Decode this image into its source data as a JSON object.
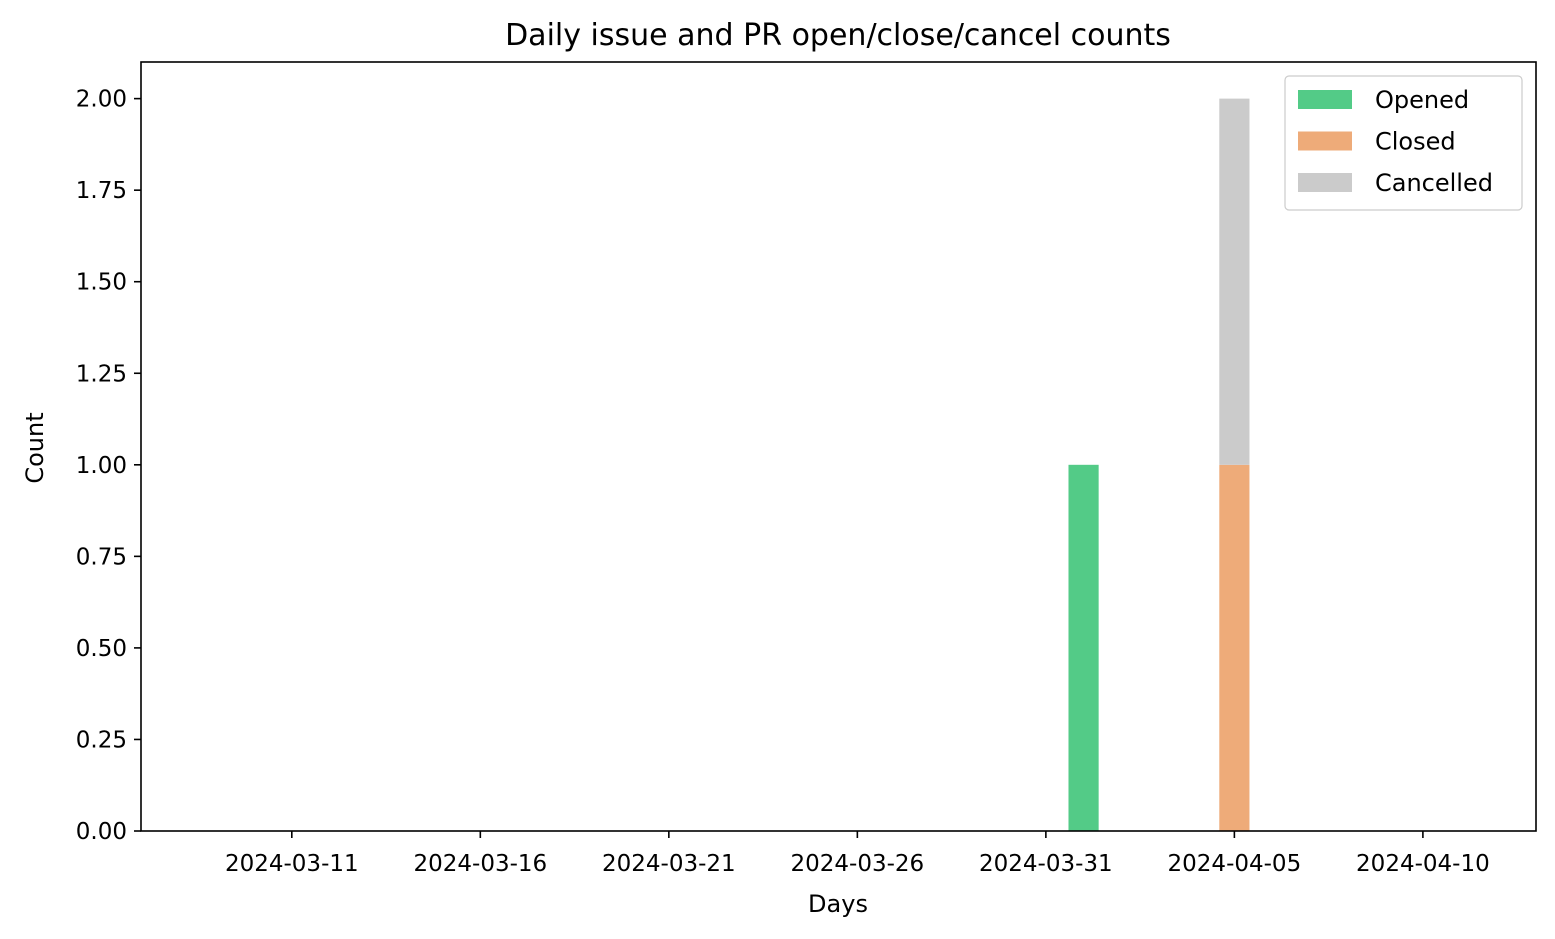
{
  "chart_data": {
    "type": "bar",
    "stacked": true,
    "title": "Daily issue and PR open/close/cancel counts",
    "xlabel": "Days",
    "ylabel": "Count",
    "ylim": [
      0,
      2.1
    ],
    "xlim": [
      "2024-03-07",
      "2024-04-13"
    ],
    "x_ticks": [
      "2024-03-11",
      "2024-03-16",
      "2024-03-21",
      "2024-03-26",
      "2024-03-31",
      "2024-04-05",
      "2024-04-10"
    ],
    "y_ticks": [
      "0.00",
      "0.25",
      "0.50",
      "0.75",
      "1.00",
      "1.25",
      "1.50",
      "1.75",
      "2.00"
    ],
    "categories": [
      "2024-04-01",
      "2024-04-05"
    ],
    "series": [
      {
        "name": "Opened",
        "color": "#53cb87",
        "values": [
          1,
          0
        ]
      },
      {
        "name": "Closed",
        "color": "#eeab79",
        "values": [
          0,
          1
        ]
      },
      {
        "name": "Cancelled",
        "color": "#cbcbcb",
        "values": [
          0,
          1
        ]
      }
    ],
    "legend_position": "top-right",
    "grid": false
  }
}
